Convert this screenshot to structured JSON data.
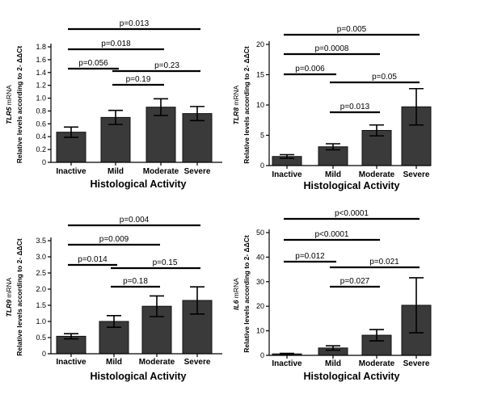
{
  "colors": {
    "bar": "#3a3a3a",
    "line": "#000000",
    "background": "#ffffff"
  },
  "chart_data": [
    {
      "type": "bar",
      "gene": "TLR5",
      "ylabel_gene": "TLR5",
      "ylabel_suffix": " mRNA",
      "ylabel_line2": "Relative levels according to 2- ΔΔCt",
      "xlabel": "Histological Activity",
      "categories": [
        "Inactive",
        "Mild",
        "Moderate",
        "Severe"
      ],
      "values": [
        0.47,
        0.7,
        0.86,
        0.76
      ],
      "errors": [
        0.08,
        0.11,
        0.13,
        0.11
      ],
      "ylim": [
        0,
        1.8
      ],
      "yticks": [
        0,
        0.2,
        0.4,
        0.6,
        0.8,
        1.0,
        1.2,
        1.4,
        1.6,
        1.8
      ],
      "ytick_labels": [
        "0",
        "0.2",
        "0.4",
        "0.6",
        "0.8",
        "1.0",
        "1.2",
        "1.4",
        "1.6",
        "1.8"
      ],
      "comparisons": [
        {
          "from": 0,
          "to": 3,
          "label": "p=0.013"
        },
        {
          "from": 0,
          "to": 2,
          "label": "p=0.018"
        },
        {
          "from": 0,
          "to": 1,
          "label": "p=0.056"
        },
        {
          "from": 1,
          "to": 3,
          "label": "p=0.23"
        },
        {
          "from": 1,
          "to": 2,
          "label": "p=0.19"
        }
      ]
    },
    {
      "type": "bar",
      "gene": "TLR8",
      "ylabel_gene": "TLR8",
      "ylabel_suffix": " mRNA",
      "ylabel_line2": "Relative levels according to 2- ΔΔCt",
      "xlabel": "Histological Activity",
      "categories": [
        "Inactive",
        "Mild",
        "Moderate",
        "Severe"
      ],
      "values": [
        1.5,
        3.1,
        5.8,
        9.7
      ],
      "errors": [
        0.3,
        0.5,
        0.9,
        3.0
      ],
      "ylim": [
        0,
        20
      ],
      "yticks": [
        0,
        5,
        10,
        15,
        20
      ],
      "ytick_labels": [
        "0",
        "5",
        "10",
        "15",
        "20"
      ],
      "comparisons": [
        {
          "from": 0,
          "to": 3,
          "label": "p=0.005"
        },
        {
          "from": 0,
          "to": 2,
          "label": "p=0.0008"
        },
        {
          "from": 0,
          "to": 1,
          "label": "p=0.006"
        },
        {
          "from": 1,
          "to": 3,
          "label": "p=0.05"
        },
        {
          "from": 1,
          "to": 2,
          "label": "p=0.013"
        }
      ]
    },
    {
      "type": "bar",
      "gene": "TLR9",
      "ylabel_gene": "TLR9",
      "ylabel_suffix": " mRNA",
      "ylabel_line2": "Relative levels according to 2- ΔΔCt",
      "xlabel": "Histological Activity",
      "categories": [
        "Inactive",
        "Mild",
        "Moderate",
        "Severe"
      ],
      "values": [
        0.54,
        1.0,
        1.47,
        1.65
      ],
      "errors": [
        0.08,
        0.18,
        0.32,
        0.42
      ],
      "ylim": [
        0,
        3.5
      ],
      "yticks": [
        0,
        0.5,
        1.0,
        1.5,
        2.0,
        2.5,
        3.0,
        3.5
      ],
      "ytick_labels": [
        "0",
        "0.5",
        "1.0",
        "1.5",
        "2.0",
        "2.5",
        "3.0",
        "3.5"
      ],
      "comparisons": [
        {
          "from": 0,
          "to": 3,
          "label": "p=0.004"
        },
        {
          "from": 0,
          "to": 2,
          "label": "p=0.009"
        },
        {
          "from": 0,
          "to": 1,
          "label": "p=0.014"
        },
        {
          "from": 1,
          "to": 3,
          "label": "p=0.15"
        },
        {
          "from": 1,
          "to": 2,
          "label": "p=0.18"
        }
      ]
    },
    {
      "type": "bar",
      "gene": "IL6",
      "ylabel_gene": "IL6",
      "ylabel_suffix": " mRNA",
      "ylabel_line2": "Relative levels according to 2- ΔΔCt",
      "xlabel": "Histological Activity",
      "categories": [
        "Inactive",
        "Mild",
        "Moderate",
        "Severe"
      ],
      "values": [
        0.6,
        3.0,
        8.2,
        20.4
      ],
      "errors": [
        0.2,
        0.9,
        2.3,
        11.2
      ],
      "ylim": [
        0,
        50
      ],
      "yticks": [
        0,
        10,
        20,
        30,
        40,
        50
      ],
      "ytick_labels": [
        "0",
        "10",
        "20",
        "30",
        "40",
        "50"
      ],
      "comparisons": [
        {
          "from": 0,
          "to": 3,
          "label": "p<0.0001"
        },
        {
          "from": 0,
          "to": 2,
          "label": "p<0.0001"
        },
        {
          "from": 0,
          "to": 1,
          "label": "p=0.012"
        },
        {
          "from": 1,
          "to": 3,
          "label": "p=0.021"
        },
        {
          "from": 1,
          "to": 2,
          "label": "p=0.027"
        }
      ]
    }
  ]
}
